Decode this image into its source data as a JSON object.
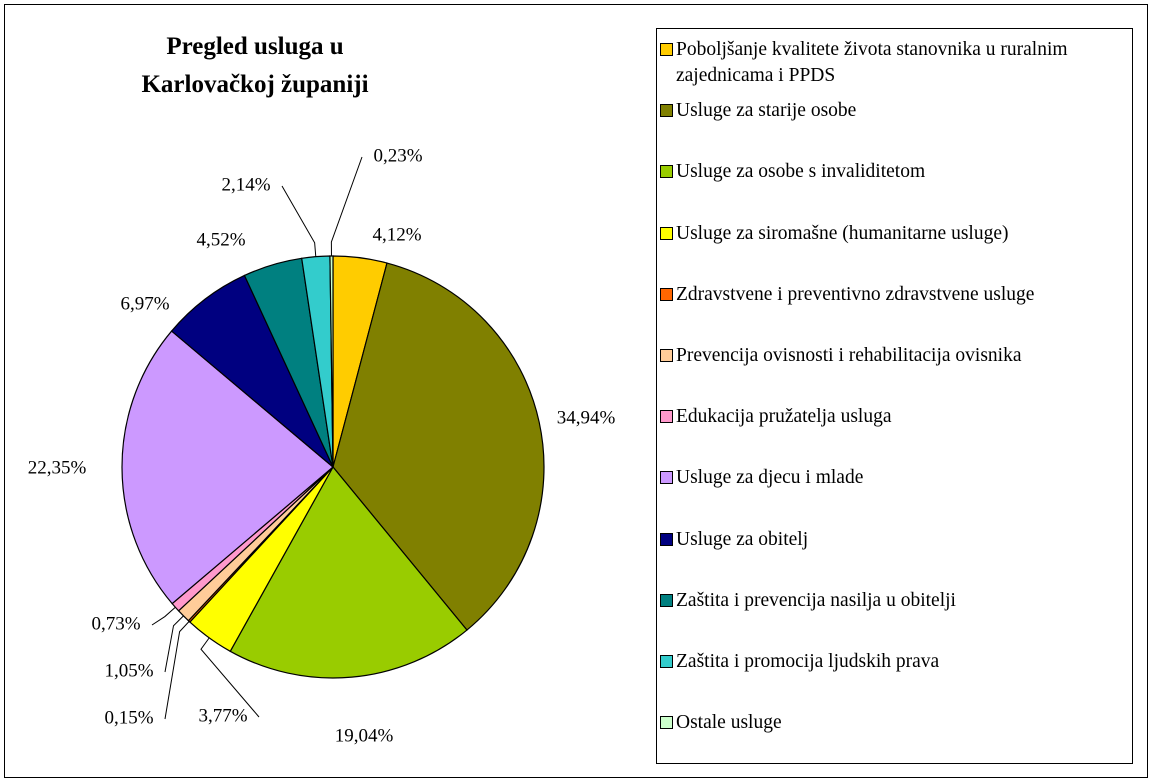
{
  "chart_data": {
    "type": "pie",
    "title": "Pregled usluga u Karlovačkoj županiji",
    "categories": [
      "Poboljšanje kvalitete života stanovnika u ruralnim zajednicama i PPDS",
      "Usluge za starije osobe",
      "Usluge za osobe s invaliditetom",
      "Usluge za siromašne (humanitarne usluge)",
      "Zdravstvene i preventivno zdravstvene usluge",
      "Prevencija ovisnosti i rehabilitacija ovisnika",
      "Edukacija pružatelja usluga",
      "Usluge za djecu i mlade",
      "Usluge za obitelj",
      "Zaštita i prevencija nasilja u obitelji",
      "Zaštita i promocija ljudskih prava",
      "Ostale usluge"
    ],
    "values": [
      4.12,
      34.94,
      19.04,
      3.77,
      0.15,
      1.05,
      0.73,
      22.35,
      6.97,
      4.52,
      2.14,
      0.23
    ],
    "value_labels": [
      "4,12%",
      "34,94%",
      "19,04%",
      "3,77%",
      "0,15%",
      "1,05%",
      "0,73%",
      "22,35%",
      "6,97%",
      "4,52%",
      "2,14%",
      "0,23%"
    ],
    "colors": [
      "#FFCC00",
      "#808000",
      "#99CC00",
      "#FFFF00",
      "#FF6600",
      "#FFCC99",
      "#FF99CC",
      "#CC99FF",
      "#000080",
      "#008080",
      "#33CCCC",
      "#CCFFCC"
    ],
    "legend": "right"
  }
}
